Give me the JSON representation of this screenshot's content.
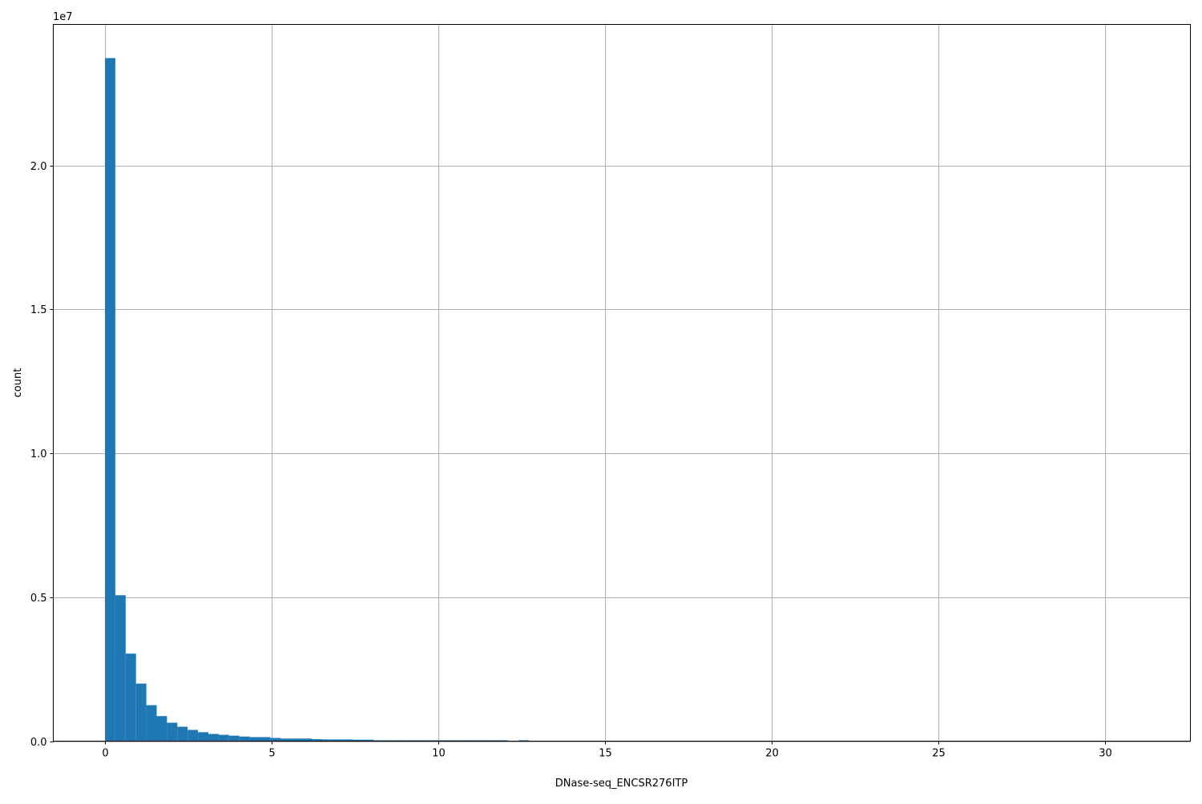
{
  "chart_data": {
    "type": "bar",
    "subtype": "histogram",
    "title": "",
    "xlabel": "DNase-seq_ENCSR276ITP",
    "ylabel": "count",
    "y_offset_label": "1e7",
    "xlim": [
      -1.55,
      32.55
    ],
    "ylim": [
      0,
      24900000
    ],
    "grid": true,
    "bar_color": "#1f77b4",
    "grid_color": "#b0b0b0",
    "bin_start": 0,
    "bin_width": 0.31,
    "x_ticks": [
      0,
      5,
      10,
      15,
      20,
      25,
      30
    ],
    "x_tick_labels": [
      "0",
      "5",
      "10",
      "15",
      "20",
      "25",
      "30"
    ],
    "y_ticks": [
      0,
      5000000,
      10000000,
      15000000,
      20000000
    ],
    "y_tick_labels": [
      "0.0",
      "0.5",
      "1.0",
      "1.5",
      "2.0"
    ],
    "values": [
      23730000,
      5070000,
      3040000,
      2000000,
      1250000,
      870000,
      640000,
      500000,
      390000,
      310000,
      250000,
      220000,
      190000,
      160000,
      140000,
      140000,
      110000,
      90000,
      90000,
      90000,
      70000,
      60000,
      60000,
      60000,
      50000,
      50000,
      30000,
      30000,
      30000,
      30000,
      30000,
      30000,
      30000,
      30000,
      30000,
      30000,
      30000,
      30000,
      30000,
      0,
      30000,
      0,
      0,
      0,
      0,
      0,
      0,
      0,
      0,
      0,
      0,
      0,
      0,
      0,
      0,
      0,
      0,
      0,
      0,
      0,
      0,
      0,
      0,
      0,
      0,
      0,
      0,
      0,
      0,
      0,
      0,
      0,
      0,
      0,
      0,
      0,
      0,
      0,
      0,
      0,
      0,
      0,
      0,
      0,
      0,
      0,
      0,
      0,
      0,
      0,
      0,
      0,
      0,
      0,
      0,
      0,
      0,
      0,
      0,
      1000
    ]
  }
}
